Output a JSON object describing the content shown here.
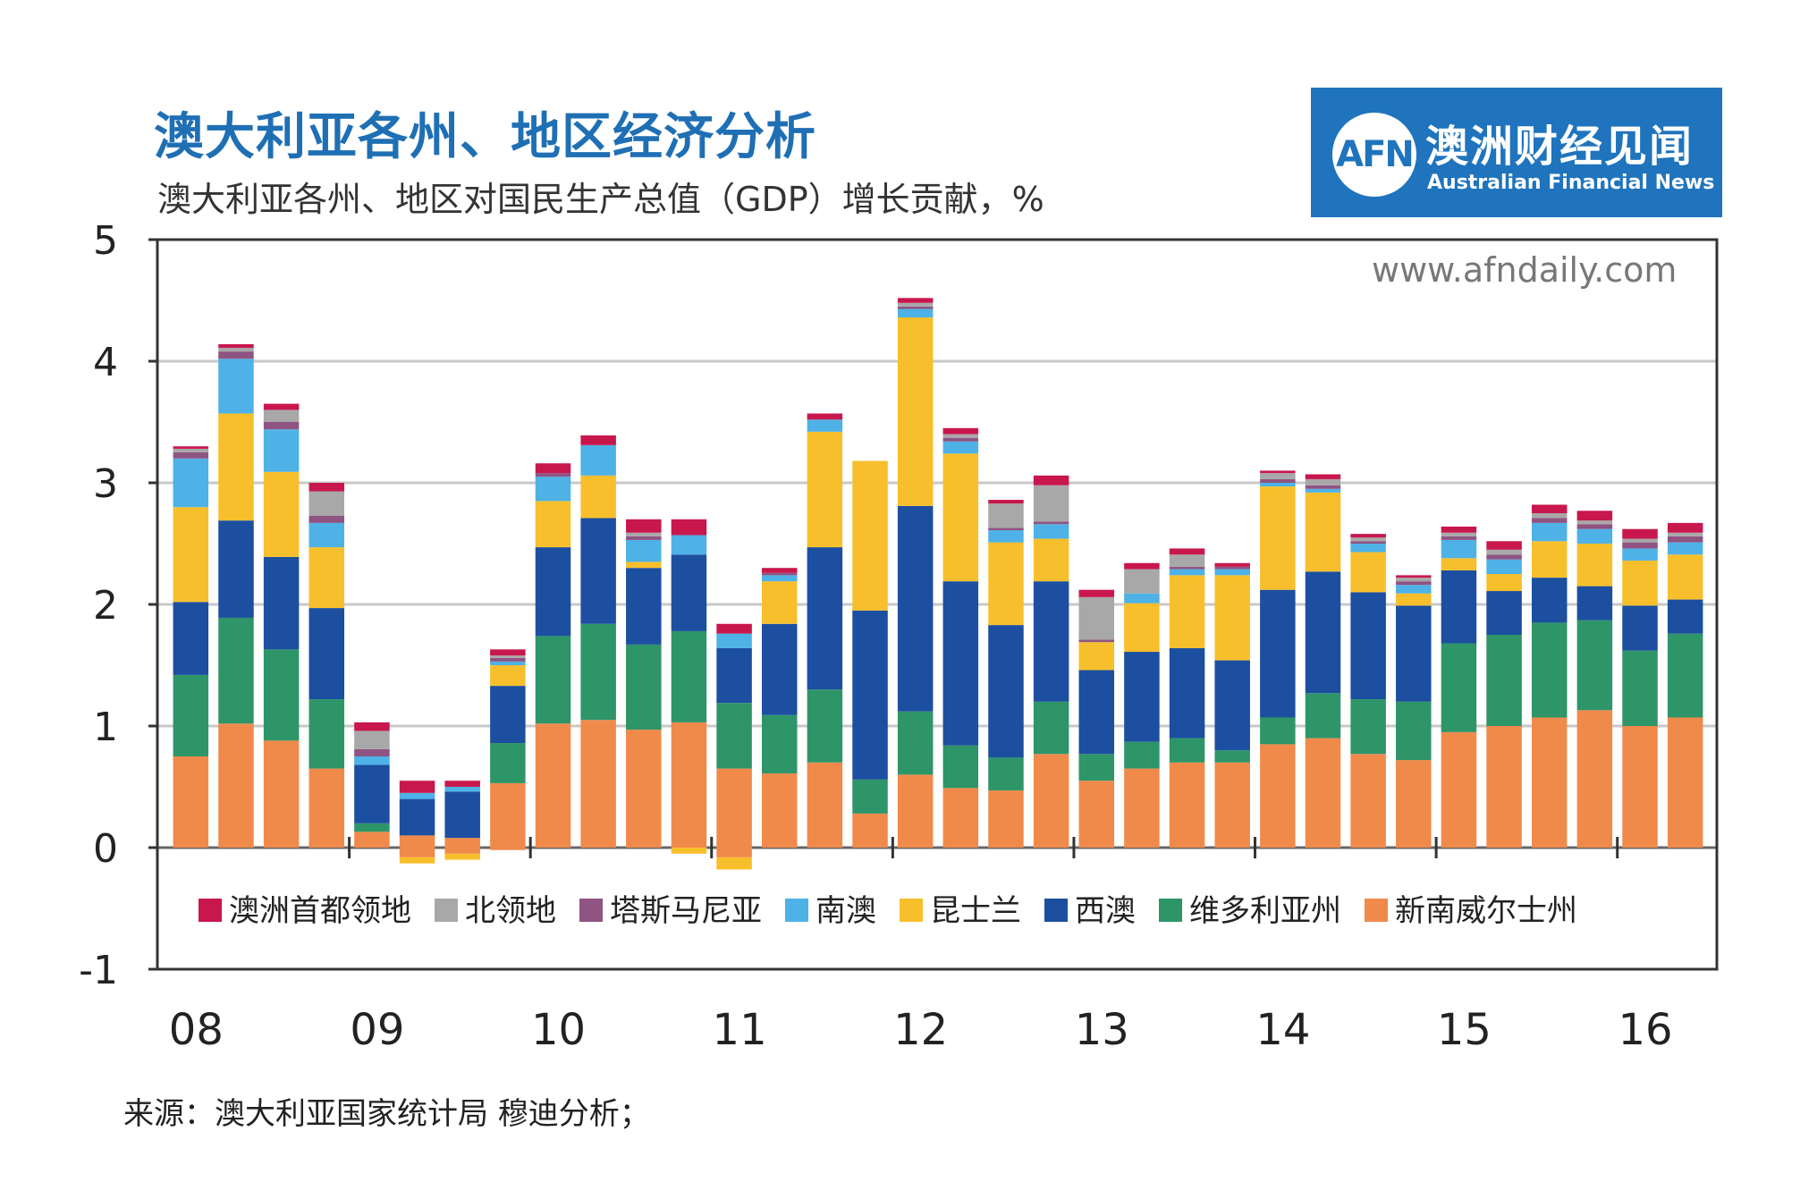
{
  "header": {
    "title": "澳大利亚各州、地区经济分析",
    "subtitle": "澳大利亚各州、地区对国民生产总值（GDP）增长贡献，%"
  },
  "logo": {
    "mark": "AFN",
    "cn": "澳洲财经见闻",
    "en": "Australian Financial News"
  },
  "watermark": "www.afndaily.com",
  "source": "来源：澳大利亚国家统计局 穆迪分析；",
  "chart_data": {
    "type": "bar",
    "stacked": true,
    "ylim": [
      -1,
      5
    ],
    "yticks": [
      "5",
      "4",
      "3",
      "2",
      "1",
      "0",
      "-1"
    ],
    "ytick_values": [
      5,
      4,
      3,
      2,
      1,
      0,
      -1
    ],
    "year_labels": [
      "08",
      "09",
      "10",
      "11",
      "12",
      "13",
      "14",
      "15",
      "16"
    ],
    "year_label_bar_index": [
      0,
      4,
      8,
      12,
      16,
      20,
      24,
      28,
      32
    ],
    "legend_position": "bottom",
    "series": [
      {
        "name": "新南威尔士州",
        "color": "#f08a4b",
        "values": [
          0.75,
          1.02,
          0.88,
          0.65,
          0.13,
          0.1,
          0.08,
          0.53,
          1.02,
          1.05,
          0.97,
          1.03,
          0.65,
          0.61,
          0.7,
          0.28,
          0.6,
          0.49,
          0.47,
          0.77,
          0.55,
          0.65,
          0.7,
          0.7,
          0.85,
          0.9,
          0.77,
          0.72,
          0.95,
          1.0,
          1.07,
          1.13,
          1.0,
          1.07
        ]
      },
      {
        "name": "维多利亚州",
        "color": "#2e9568",
        "values": [
          0.67,
          0.87,
          0.75,
          0.57,
          0.07,
          0.0,
          0.0,
          0.33,
          0.72,
          0.79,
          0.7,
          0.75,
          0.54,
          0.48,
          0.6,
          0.28,
          0.52,
          0.35,
          0.27,
          0.43,
          0.22,
          0.22,
          0.2,
          0.1,
          0.22,
          0.37,
          0.45,
          0.48,
          0.73,
          0.75,
          0.78,
          0.74,
          0.62,
          0.69
        ]
      },
      {
        "name": "西澳",
        "color": "#1c4fa0",
        "values": [
          0.6,
          0.8,
          0.76,
          0.75,
          0.48,
          0.3,
          0.38,
          0.47,
          0.73,
          0.87,
          0.63,
          0.63,
          0.45,
          0.75,
          1.17,
          1.39,
          1.69,
          1.35,
          1.09,
          0.99,
          0.69,
          0.74,
          0.74,
          0.74,
          1.05,
          1.0,
          0.88,
          0.79,
          0.6,
          0.36,
          0.37,
          0.28,
          0.37,
          0.28
        ]
      },
      {
        "name": "昆士兰",
        "color": "#f8bf2c",
        "values": [
          0.78,
          0.88,
          0.7,
          0.5,
          0.0,
          0.0,
          0.0,
          0.17,
          0.38,
          0.35,
          0.05,
          0.0,
          0.0,
          0.35,
          0.95,
          1.23,
          1.55,
          1.05,
          0.68,
          0.35,
          0.23,
          0.4,
          0.6,
          0.7,
          0.85,
          0.65,
          0.33,
          0.1,
          0.1,
          0.14,
          0.3,
          0.35,
          0.37,
          0.37
        ]
      },
      {
        "name": "南澳",
        "color": "#4eb2e6",
        "values": [
          0.4,
          0.45,
          0.35,
          0.2,
          0.07,
          0.05,
          0.04,
          0.03,
          0.2,
          0.25,
          0.18,
          0.16,
          0.12,
          0.05,
          0.1,
          0.0,
          0.07,
          0.1,
          0.1,
          0.12,
          0.0,
          0.08,
          0.05,
          0.05,
          0.03,
          0.03,
          0.07,
          0.07,
          0.15,
          0.12,
          0.15,
          0.12,
          0.1,
          0.1
        ]
      },
      {
        "name": "塔斯马尼亚",
        "color": "#8f5482",
        "values": [
          0.05,
          0.06,
          0.06,
          0.06,
          0.06,
          0.0,
          0.0,
          0.03,
          0.03,
          0.0,
          0.03,
          0.0,
          0.0,
          0.02,
          0.0,
          0.0,
          0.02,
          0.03,
          0.02,
          0.02,
          0.02,
          0.0,
          0.02,
          0.02,
          0.03,
          0.03,
          0.02,
          0.03,
          0.03,
          0.04,
          0.04,
          0.04,
          0.05,
          0.05
        ]
      },
      {
        "name": "北领地",
        "color": "#a8a8a8",
        "values": [
          0.03,
          0.03,
          0.1,
          0.2,
          0.15,
          0.0,
          0.0,
          0.02,
          0.0,
          0.0,
          0.03,
          0.0,
          0.0,
          0.0,
          0.0,
          0.0,
          0.03,
          0.03,
          0.2,
          0.3,
          0.35,
          0.2,
          0.1,
          0.0,
          0.05,
          0.05,
          0.03,
          0.03,
          0.03,
          0.04,
          0.04,
          0.03,
          0.03,
          0.03
        ]
      },
      {
        "name": "澳洲首都领地",
        "color": "#c8174d",
        "values": [
          0.02,
          0.03,
          0.05,
          0.07,
          0.07,
          0.1,
          0.05,
          0.05,
          0.08,
          0.08,
          0.11,
          0.13,
          0.08,
          0.04,
          0.05,
          0.0,
          0.04,
          0.05,
          0.03,
          0.08,
          0.06,
          0.05,
          0.05,
          0.03,
          0.02,
          0.04,
          0.03,
          0.02,
          0.05,
          0.07,
          0.07,
          0.08,
          0.08,
          0.08
        ]
      }
    ],
    "negative_values": {
      "新南威尔士州": [
        0,
        0,
        0,
        0,
        0,
        -0.08,
        -0.05,
        -0.02,
        0,
        0,
        0,
        0,
        -0.08,
        0,
        0,
        0,
        0,
        0,
        0,
        0,
        0,
        0,
        0,
        0,
        0,
        0,
        0,
        0,
        0,
        0,
        0,
        0,
        0,
        0
      ],
      "昆士兰": [
        0,
        0,
        0,
        0,
        0,
        -0.05,
        -0.05,
        0,
        0,
        0,
        0,
        -0.05,
        -0.1,
        0,
        0,
        0,
        0,
        0,
        0,
        0,
        0,
        0,
        0,
        0,
        0,
        0,
        0,
        0,
        0,
        0,
        0,
        0,
        0,
        0
      ]
    }
  }
}
